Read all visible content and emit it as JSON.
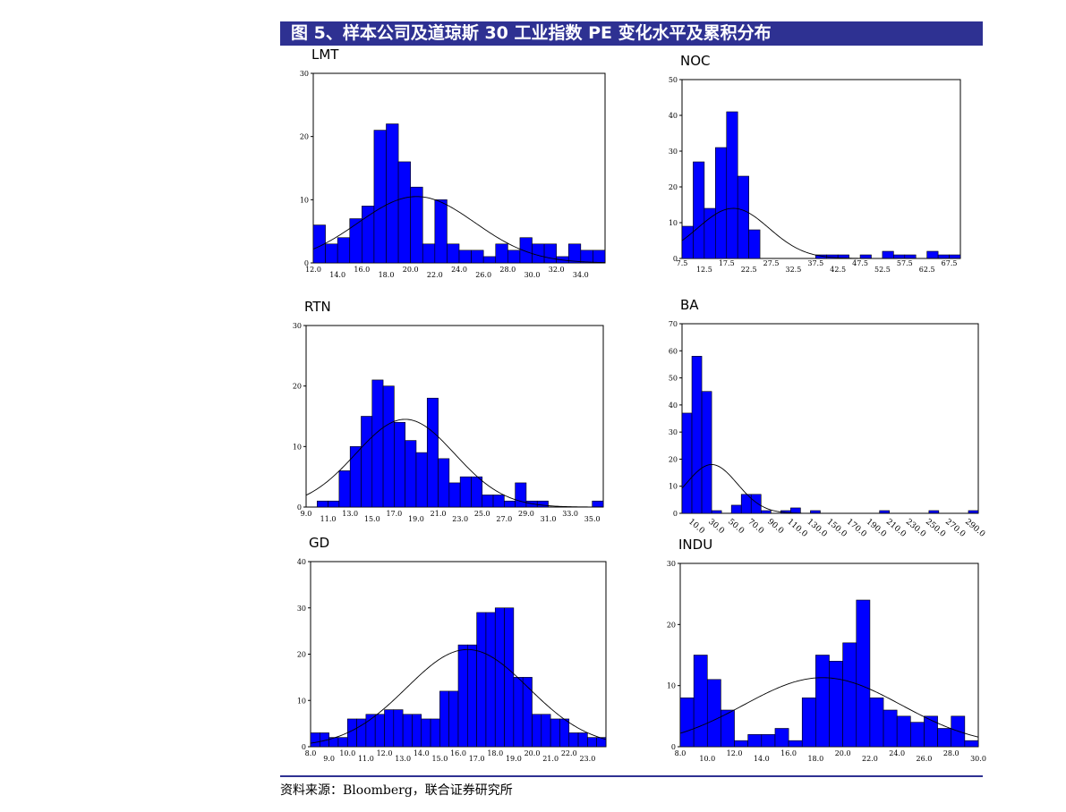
{
  "page": {
    "title": "图 5、样本公司及道琼斯 30 工业指数 PE 变化水平及累积分布",
    "source": "资料来源：Bloomberg，联合证券研究所"
  },
  "colors": {
    "bar": "#0000ff",
    "bar_edge": "#000000",
    "curve": "#000000",
    "title_bar": "#2e3192"
  },
  "chart_data": [
    {
      "type": "bar",
      "title": "LMT",
      "xlim": [
        12.0,
        36.0
      ],
      "ylim": [
        0,
        30
      ],
      "bin_width": 1.0,
      "y_ticks": [
        0,
        10,
        20,
        30
      ],
      "x_ticks_top": [
        "12.0",
        "16.0",
        "20.0",
        "24.0",
        "28.0",
        "32.0"
      ],
      "x_ticks_bottom": [
        "14.0",
        "18.0",
        "22.0",
        "26.0",
        "30.0",
        "34.0"
      ],
      "bins_start": [
        12,
        13,
        14,
        15,
        16,
        17,
        18,
        19,
        20,
        21,
        22,
        23,
        24,
        25,
        26,
        27,
        28,
        29,
        30,
        31,
        32,
        33,
        34,
        35
      ],
      "values": [
        6,
        3,
        4,
        7,
        9,
        21,
        22,
        16,
        12,
        3,
        10,
        3,
        2,
        2,
        1,
        3,
        2,
        4,
        3,
        3,
        1,
        3,
        2,
        2
      ],
      "curve": {
        "mean": 20.5,
        "sd": 4.8,
        "peak": 10.5
      }
    },
    {
      "type": "bar",
      "title": "NOC",
      "xlim": [
        7.5,
        70.0
      ],
      "ylim": [
        0,
        50
      ],
      "bin_width": 2.5,
      "y_ticks": [
        0,
        10,
        20,
        30,
        40,
        50
      ],
      "x_ticks_top": [
        "7.5",
        "17.5",
        "27.5",
        "37.5",
        "47.5",
        "57.5",
        "67.5"
      ],
      "x_ticks_bottom": [
        "12.5",
        "22.5",
        "32.5",
        "42.5",
        "52.5",
        "62.5"
      ],
      "bins_start": [
        7.5,
        10,
        12.5,
        15,
        17.5,
        20,
        22.5,
        37.5,
        40,
        42.5,
        47.5,
        52.5,
        55,
        57.5,
        62.5,
        65,
        67.5
      ],
      "values": [
        9,
        27,
        14,
        31,
        41,
        23,
        8,
        1,
        1,
        1,
        1,
        2,
        1,
        1,
        2,
        1,
        1
      ],
      "curve": {
        "mean": 19.0,
        "sd": 8.0,
        "peak": 14.0
      }
    },
    {
      "type": "bar",
      "title": "RTN",
      "xlim": [
        9.0,
        36.0
      ],
      "ylim": [
        0,
        30
      ],
      "bin_width": 1.0,
      "y_ticks": [
        0,
        10,
        20,
        30
      ],
      "x_ticks_top": [
        "9.0",
        "13.0",
        "17.0",
        "21.0",
        "25.0",
        "29.0",
        "33.0"
      ],
      "x_ticks_bottom": [
        "11.0",
        "15.0",
        "19.0",
        "23.0",
        "27.0",
        "31.0",
        "35.0"
      ],
      "bins_start": [
        10,
        11,
        12,
        13,
        14,
        15,
        16,
        17,
        18,
        19,
        20,
        21,
        22,
        23,
        24,
        25,
        26,
        27,
        28,
        29,
        30,
        35
      ],
      "values": [
        1,
        1,
        6,
        10,
        15,
        21,
        20,
        14,
        11,
        9,
        18,
        8,
        4,
        5,
        5,
        2,
        2,
        1,
        4,
        1,
        1,
        1
      ],
      "curve": {
        "mean": 18.0,
        "sd": 4.5,
        "peak": 14.5
      }
    },
    {
      "type": "bar",
      "title": "BA",
      "xlim": [
        0,
        300
      ],
      "ylim": [
        0,
        70
      ],
      "bin_width": 10,
      "y_ticks": [
        0,
        10,
        20,
        30,
        40,
        50,
        60,
        70
      ],
      "x_ticks_top": [],
      "x_ticks_bottom": [
        "10.0",
        "30.0",
        "50.0",
        "70.0",
        "90.0",
        "110.0",
        "130.0",
        "150.0",
        "170.0",
        "190.0",
        "210.0",
        "230.0",
        "250.0",
        "270.0",
        "290.0"
      ],
      "bins_start": [
        0,
        10,
        20,
        30,
        50,
        60,
        70,
        80,
        100,
        110,
        130,
        200,
        250,
        290
      ],
      "values": [
        37,
        58,
        45,
        1,
        3,
        7,
        7,
        1,
        1,
        2,
        1,
        1,
        1,
        1
      ],
      "curve": {
        "mean": 30,
        "sd": 26,
        "peak": 18
      }
    },
    {
      "type": "bar",
      "title": "GD",
      "xlim": [
        8.0,
        24.0
      ],
      "ylim": [
        0,
        40
      ],
      "bin_width": 0.5,
      "y_ticks": [
        0,
        10,
        20,
        30,
        40
      ],
      "x_ticks_top": [
        "8.0",
        "10.0",
        "12.0",
        "14.0",
        "16.0",
        "18.0",
        "20.0",
        "22.0"
      ],
      "x_ticks_bottom": [
        "9.0",
        "11.0",
        "13.0",
        "15.0",
        "17.0",
        "19.0",
        "21.0",
        "23.0"
      ],
      "bins_start": [
        8.0,
        8.5,
        9.0,
        9.5,
        10.0,
        10.5,
        11.0,
        11.5,
        12.0,
        12.5,
        13.0,
        13.5,
        14.0,
        14.5,
        15.0,
        15.5,
        16.0,
        16.5,
        17.0,
        17.5,
        18.0,
        18.5,
        19.0,
        19.5,
        20.0,
        20.5,
        21.0,
        21.5,
        22.0,
        22.5,
        23.0,
        23.5
      ],
      "values": [
        3,
        3,
        2,
        2,
        6,
        6,
        7,
        7,
        8,
        8,
        7,
        7,
        6,
        6,
        12,
        12,
        22,
        22,
        29,
        29,
        30,
        30,
        15,
        15,
        7,
        7,
        6,
        6,
        3,
        3,
        2,
        2
      ],
      "curve": {
        "mean": 16.5,
        "sd": 3.3,
        "peak": 21
      }
    },
    {
      "type": "bar",
      "title": "INDU",
      "xlim": [
        8.0,
        30.0
      ],
      "ylim": [
        0,
        30
      ],
      "bin_width": 1.0,
      "y_ticks": [
        0,
        10,
        20,
        30
      ],
      "x_ticks_top": [
        "8.0",
        "12.0",
        "16.0",
        "20.0",
        "24.0",
        "28.0"
      ],
      "x_ticks_bottom": [
        "10.0",
        "14.0",
        "18.0",
        "22.0",
        "26.0",
        "30.0"
      ],
      "bins_start": [
        8,
        9,
        10,
        11,
        12,
        13,
        14,
        15,
        16,
        17,
        18,
        19,
        20,
        21,
        22,
        23,
        24,
        25,
        26,
        27,
        28,
        29
      ],
      "values": [
        8,
        15,
        11,
        6,
        1,
        2,
        2,
        3,
        1,
        8,
        15,
        14,
        17,
        24,
        8,
        6,
        5,
        4,
        5,
        3,
        5,
        1
      ],
      "curve": {
        "mean": 18.5,
        "sd": 5.8,
        "peak": 11.3
      }
    }
  ]
}
